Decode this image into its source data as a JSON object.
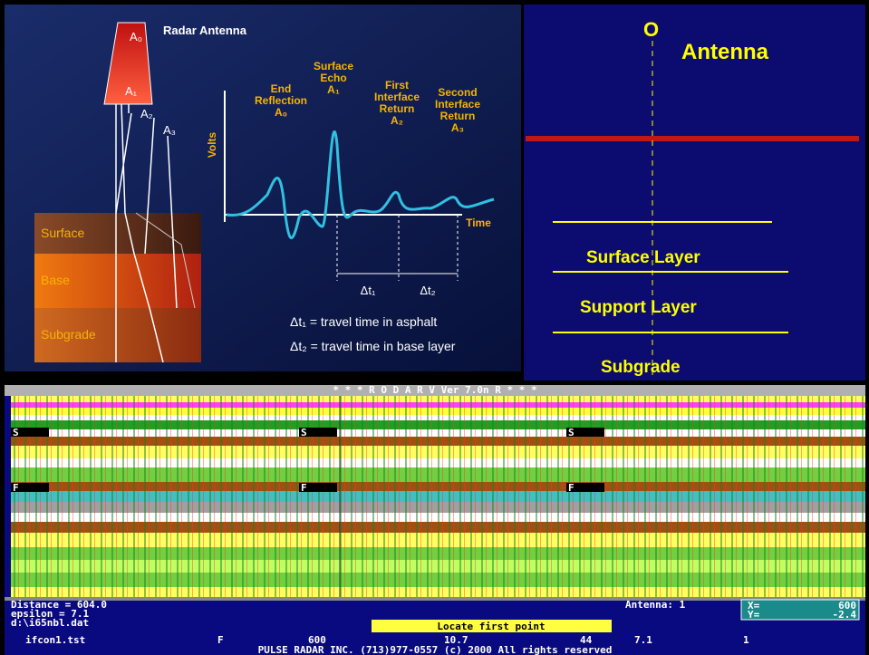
{
  "slide": {
    "antenna_title": "Radar Antenna",
    "a0": "A₀",
    "a1": "A₁",
    "a2": "A₂",
    "a3": "A₃",
    "layers": [
      "Surface",
      "Base",
      "Subgrade"
    ],
    "y_axis": "Volts",
    "x_axis": "Time",
    "peaks": [
      [
        "End",
        "Reflection",
        "A₀"
      ],
      [
        "Surface",
        "Echo",
        "A₁"
      ],
      [
        "First",
        "Interface",
        "Return",
        "A₂"
      ],
      [
        "Second",
        "Interface",
        "Return",
        "A₃"
      ]
    ],
    "dt1": "Δt₁",
    "dt2": "Δt₂",
    "eq1": "Δt₁  = travel time in asphalt",
    "eq2": "Δt₂  = travel time in base layer"
  },
  "diagram": {
    "origin": "O",
    "antenna": "Antenna",
    "layers": [
      "Surface Layer",
      "Support Layer",
      "Subgrade"
    ]
  },
  "screen": {
    "header": "* * *   R O D A R    V     Ver 7.0n R * * *",
    "markers": [
      "S",
      "S",
      "S",
      "F",
      "F",
      "F"
    ],
    "distance": "Distance =   604.0",
    "epsilon": "epsilon =     7.1",
    "file": "d:\\i65nbl.dat",
    "antenna": "Antenna: 1",
    "x_label": "X=",
    "x_value": "600",
    "y_label": "Y=",
    "y_value": "-2.4",
    "prompt": "Locate first point",
    "footer": [
      "ifcon1.tst",
      "F",
      "600",
      "10.7",
      "44",
      "7.1",
      "1"
    ],
    "copyright": "PULSE RADAR INC. (713)977-0557 (c) 2000  All rights reserved"
  }
}
